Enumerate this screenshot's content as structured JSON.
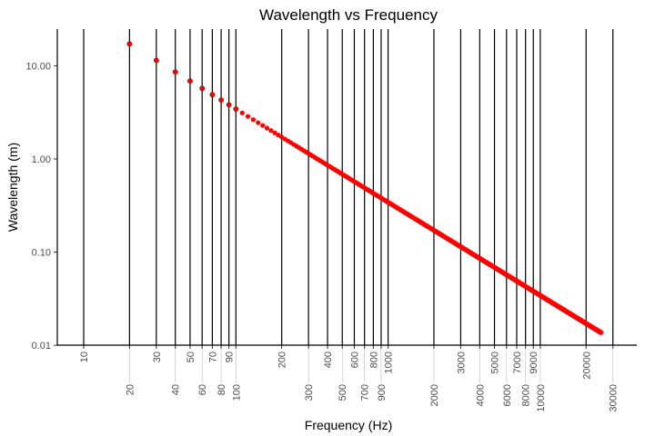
{
  "chart_data": {
    "type": "scatter",
    "title": "Wavelength vs Frequency",
    "xlabel": "Frequency (Hz)",
    "ylabel": "Wavelength (m)",
    "x_scale": "log10",
    "y_scale": "log10",
    "xlim": [
      7,
      40000
    ],
    "ylim": [
      0.0095,
      25
    ],
    "x_ticks": [
      10,
      20,
      30,
      40,
      50,
      60,
      70,
      80,
      90,
      100,
      200,
      300,
      400,
      500,
      600,
      700,
      800,
      900,
      1000,
      2000,
      3000,
      4000,
      5000,
      6000,
      7000,
      8000,
      9000,
      10000,
      20000,
      30000
    ],
    "x_tick_labels": [
      "10",
      "20",
      "30",
      "40",
      "50",
      "60",
      "70",
      "80",
      "90",
      "100",
      "200",
      "300",
      "400",
      "500",
      "600",
      "700",
      "800",
      "900",
      "1000",
      "2000",
      "3000",
      "4000",
      "5000",
      "6000",
      "7000",
      "8000",
      "9000",
      "10000",
      "20000",
      "30000"
    ],
    "y_ticks": [
      10,
      1,
      0.1,
      0.01
    ],
    "y_tick_labels": [
      "10.00",
      "1.00",
      "0.10",
      "0.01"
    ],
    "grid": "vertical lines at x ticks",
    "series": [
      {
        "name": "wavelength",
        "x": {
          "start": 20,
          "end": 25000,
          "step": 10
        },
        "y_rule": "speed_of_sound / x",
        "speed_of_sound": 343,
        "color": "#ff0000",
        "edge_color": "#8b0000"
      }
    ]
  }
}
